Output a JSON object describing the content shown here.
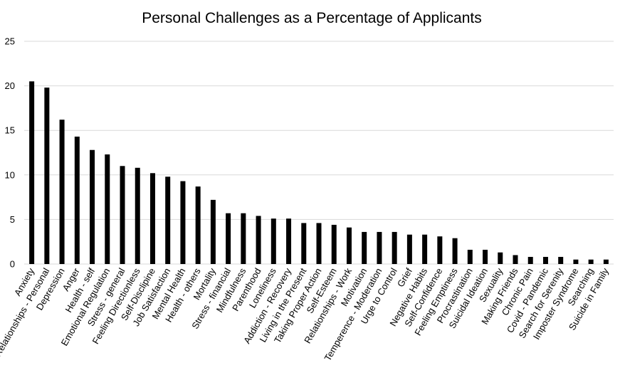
{
  "chart_data": {
    "type": "bar",
    "title": "Personal Challenges as a Percentage of Applicants",
    "xlabel": "",
    "ylabel": "",
    "ylim": [
      0,
      25
    ],
    "yticks": [
      0,
      5,
      10,
      15,
      20,
      25
    ],
    "grid": true,
    "legend": "none",
    "bar_color": "#000000",
    "categories": [
      "Anxiety",
      "Relationships - Personal",
      "Depression",
      "Anger",
      "Health - self",
      "Emotional Regulation",
      "Stress - general",
      "Feeling Directionless",
      "Self-Disclipine",
      "Job Satisfaction",
      "Mental Health",
      "Health - others",
      "Mortality",
      "Stress - financial",
      "Mindfulness",
      "Parenthood",
      "Loneliness",
      "Addiction - Recovery",
      "Living in the Present",
      "Taking Proper Action",
      "Self-Esteem",
      "Relationships - Work",
      "Motivation",
      "Temperence - Moderation",
      "Urge to Control",
      "Grief",
      "Negative Habits",
      "Self-Confidence",
      "Feeling Emptiness",
      "Procrastination",
      "Suicidal Ideation",
      "Sexuality",
      "Making Friends",
      "Chronic Pain",
      "Covid - Pandemic",
      "Search for Serenity",
      "Imposter Syndrome",
      "Searching",
      "Suicide in Family"
    ],
    "values": [
      20.5,
      19.8,
      16.2,
      14.3,
      12.8,
      12.3,
      11.0,
      10.8,
      10.2,
      9.8,
      9.3,
      8.7,
      7.2,
      5.7,
      5.7,
      5.4,
      5.1,
      5.1,
      4.6,
      4.6,
      4.4,
      4.1,
      3.6,
      3.6,
      3.6,
      3.3,
      3.3,
      3.1,
      2.9,
      1.6,
      1.6,
      1.3,
      1.0,
      0.8,
      0.8,
      0.8,
      0.5,
      0.5,
      0.5
    ]
  }
}
